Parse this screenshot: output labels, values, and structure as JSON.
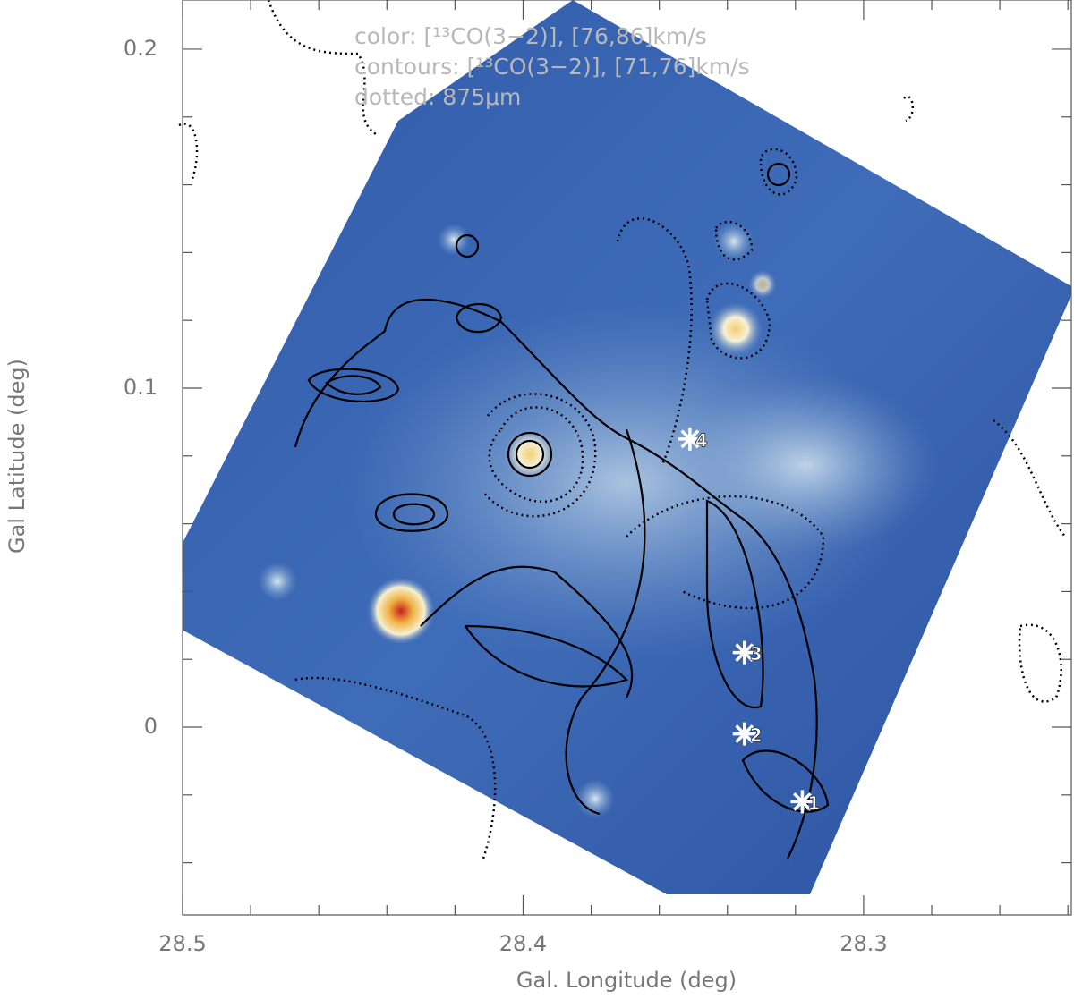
{
  "chart_data": {
    "type": "map",
    "annotations": [
      "color: [¹³CO(3−2)], [76,86]km/s",
      "contours: [¹³CO(3−2)], [71,76]km/s",
      "dotted: 875μm"
    ],
    "xlabel": "Gal. Longitude (deg)",
    "ylabel": "Gal Latitude (deg)",
    "xlim": [
      28.5,
      28.239
    ],
    "ylim": [
      -0.0554,
      0.2145
    ],
    "xticks": [
      28.5,
      28.4,
      28.3
    ],
    "yticks": [
      0,
      0.1,
      0.2
    ],
    "xminorticks": [
      28.48,
      28.46,
      28.44,
      28.42,
      28.38,
      28.36,
      28.34,
      28.32,
      28.28,
      28.26,
      28.24
    ],
    "yminorticks": [
      -0.04,
      -0.02,
      0.02,
      0.04,
      0.06,
      0.08,
      0.12,
      0.14,
      0.16,
      0.18
    ],
    "markers": [
      {
        "label": "1",
        "l": 28.318,
        "b": -0.022
      },
      {
        "label": "2",
        "l": 28.335,
        "b": -0.002
      },
      {
        "label": "3",
        "l": 28.335,
        "b": 0.022
      },
      {
        "label": "4",
        "l": 28.351,
        "b": 0.085
      }
    ]
  }
}
